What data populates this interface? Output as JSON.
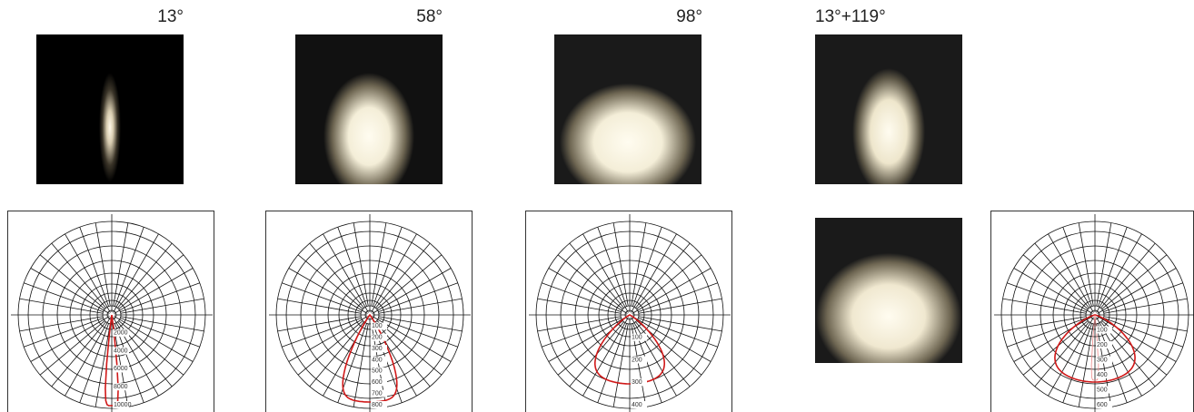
{
  "panels": [
    {
      "label": "13°",
      "polar_ticks": [
        "2000",
        "4000",
        "6000",
        "8000",
        "10000"
      ]
    },
    {
      "label": "58°",
      "polar_ticks": [
        "100",
        "200",
        "300",
        "400",
        "500",
        "600",
        "700",
        "800"
      ]
    },
    {
      "label": "98°",
      "polar_ticks": [
        "100",
        "200",
        "300",
        "400"
      ]
    },
    {
      "label": "13°+119°",
      "polar_ticks": [
        "100",
        "200",
        "300",
        "400",
        "500",
        "600"
      ]
    }
  ]
}
